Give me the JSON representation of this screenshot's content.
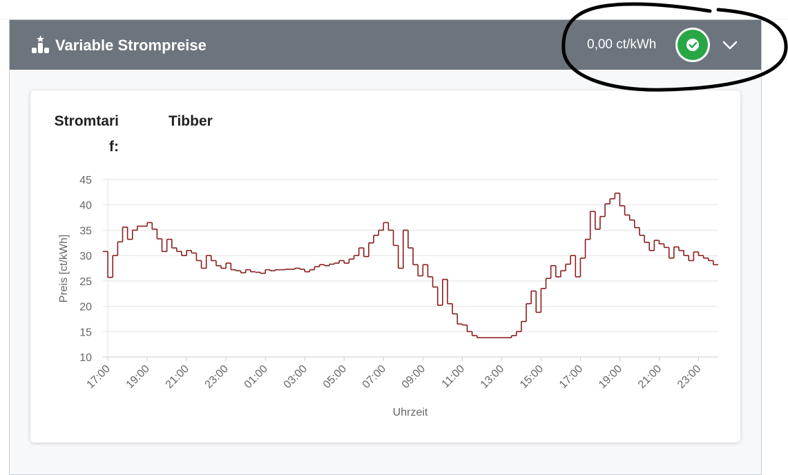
{
  "header": {
    "title": "Variable Strompreise",
    "status_value": "0,00 ct/kWh"
  },
  "tariff": {
    "label": "Stromtarif:",
    "value": "Tibber"
  },
  "chart_data": {
    "type": "line",
    "drawstyle": "steps-post",
    "xlabel": "Uhrzeit",
    "ylabel": "Preis [ct/kWh]",
    "color": "#8b1c1c",
    "grid": true,
    "xlim": [
      16.75,
      48
    ],
    "ylim": [
      10,
      45
    ],
    "yticks": [
      10,
      15,
      20,
      25,
      30,
      35,
      40,
      45
    ],
    "xticks": [
      {
        "value": 17,
        "label": "17:00"
      },
      {
        "value": 19,
        "label": "19:00"
      },
      {
        "value": 21,
        "label": "21:00"
      },
      {
        "value": 23,
        "label": "23:00"
      },
      {
        "value": 25,
        "label": "01:00"
      },
      {
        "value": 27,
        "label": "03:00"
      },
      {
        "value": 29,
        "label": "05:00"
      },
      {
        "value": 31,
        "label": "07:00"
      },
      {
        "value": 33,
        "label": "09:00"
      },
      {
        "value": 35,
        "label": "11:00"
      },
      {
        "value": 37,
        "label": "13:00"
      },
      {
        "value": 39,
        "label": "15:00"
      },
      {
        "value": 41,
        "label": "17:00"
      },
      {
        "value": 43,
        "label": "19:00"
      },
      {
        "value": 45,
        "label": "21:00"
      },
      {
        "value": 47,
        "label": "23:00"
      }
    ],
    "x": [
      16.75,
      17,
      17.25,
      17.5,
      17.75,
      18,
      18.25,
      18.5,
      18.75,
      19,
      19.25,
      19.5,
      19.75,
      20,
      20.25,
      20.5,
      20.75,
      21,
      21.25,
      21.5,
      21.75,
      22,
      22.25,
      22.5,
      22.75,
      23,
      23.25,
      23.5,
      23.75,
      24,
      24.25,
      24.5,
      24.75,
      25,
      25.25,
      25.5,
      25.75,
      26,
      26.25,
      26.5,
      26.75,
      27,
      27.25,
      27.5,
      27.75,
      28,
      28.25,
      28.5,
      28.75,
      29,
      29.25,
      29.5,
      29.75,
      30,
      30.25,
      30.5,
      30.75,
      31,
      31.25,
      31.5,
      31.75,
      32,
      32.25,
      32.5,
      32.75,
      33,
      33.25,
      33.5,
      33.75,
      34,
      34.25,
      34.5,
      34.75,
      35,
      35.25,
      35.5,
      35.75,
      36,
      36.25,
      36.5,
      36.75,
      37,
      37.25,
      37.5,
      37.75,
      38,
      38.25,
      38.5,
      38.75,
      39,
      39.25,
      39.5,
      39.75,
      40,
      40.25,
      40.5,
      40.75,
      41,
      41.25,
      41.5,
      41.75,
      42,
      42.25,
      42.5,
      42.75,
      43,
      43.25,
      43.5,
      43.75,
      44,
      44.25,
      44.5,
      44.75,
      45,
      45.25,
      45.5,
      45.75,
      46,
      46.25,
      46.5,
      46.75,
      47,
      47.25,
      47.5,
      47.75
    ],
    "values": [
      30.8,
      25.7,
      30,
      32.7,
      35.6,
      33.2,
      35,
      35.8,
      35.8,
      36.5,
      35.2,
      33.3,
      30.8,
      33.2,
      31.5,
      30.8,
      30,
      31,
      30.5,
      29,
      27.5,
      30,
      29,
      28,
      27.5,
      28.5,
      27.2,
      27,
      26.6,
      27.2,
      26.8,
      26.7,
      26.5,
      27.2,
      27,
      27.2,
      27.2,
      27.3,
      27.3,
      27.5,
      27.3,
      26.8,
      27.2,
      27.8,
      28.2,
      28,
      28.3,
      28.5,
      29,
      28.5,
      29.3,
      30,
      31.5,
      29.8,
      32.5,
      34,
      35,
      36.5,
      35,
      32,
      27.5,
      35,
      31.5,
      28.2,
      26,
      28.2,
      25.8,
      23.8,
      20.2,
      25.3,
      20.5,
      18.5,
      16.5,
      16.3,
      15,
      14.2,
      13.8,
      13.8,
      13.8,
      13.8,
      13.8,
      13.8,
      13.8,
      14.2,
      15,
      17,
      20.5,
      23,
      18.8,
      23.5,
      25.5,
      28,
      25.8,
      27,
      28.3,
      30,
      25.8,
      29.5,
      33.2,
      38.7,
      35.2,
      37.7,
      40.2,
      41.2,
      42.3,
      39.8,
      38,
      37,
      35.5,
      34,
      32.6,
      31,
      33,
      32.3,
      31.6,
      29.5,
      31.7,
      31,
      30,
      29,
      30.7,
      30,
      29.5,
      29,
      28.2
    ]
  }
}
